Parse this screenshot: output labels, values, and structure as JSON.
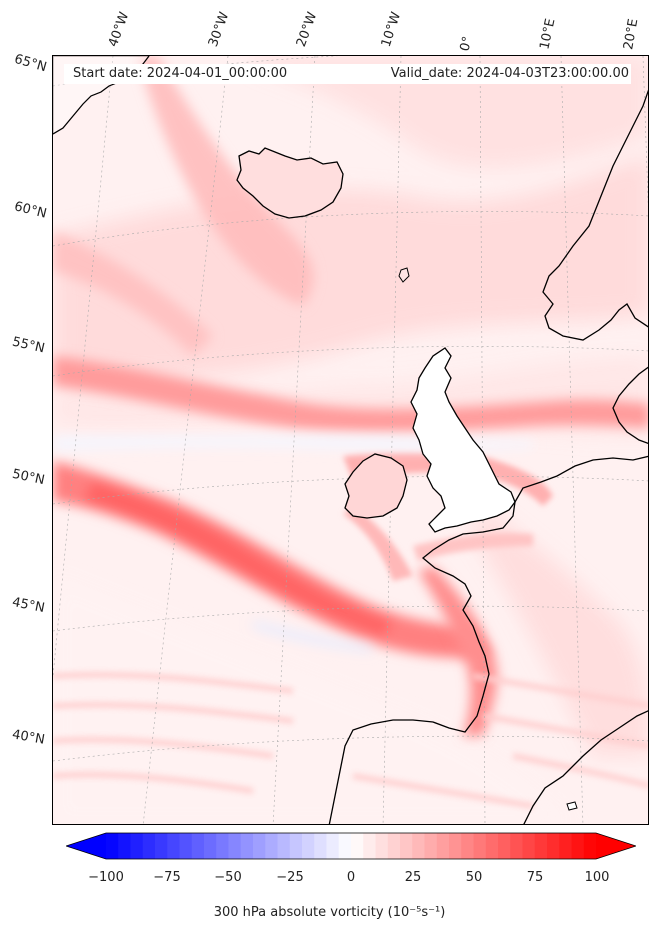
{
  "header": {
    "start_date": "Start date: 2024-04-01_00:00:00",
    "valid_date": "Valid_date: 2024-04-03T23:00:00.00"
  },
  "axes": {
    "lon_labels": [
      "40°W",
      "30°W",
      "20°W",
      "10°W",
      "0°",
      "10°E",
      "20°E"
    ],
    "lat_labels": [
      "65°N",
      "60°N",
      "55°N",
      "50°N",
      "45°N",
      "40°N"
    ]
  },
  "colorbar": {
    "label": "300 hPa absolute vorticity (10⁻⁵s⁻¹)",
    "ticks": [
      "−100",
      "−75",
      "−50",
      "−25",
      "0",
      "25",
      "50",
      "75",
      "100"
    ],
    "min": -100,
    "max": 100,
    "colormap": "bwr",
    "min_color": "#0000ff",
    "mid_color": "#ffffff",
    "max_color": "#ff0000"
  },
  "map": {
    "land_color": "#ffffff",
    "coastline_color": "#000000",
    "background_color": "#fff4f4"
  }
}
